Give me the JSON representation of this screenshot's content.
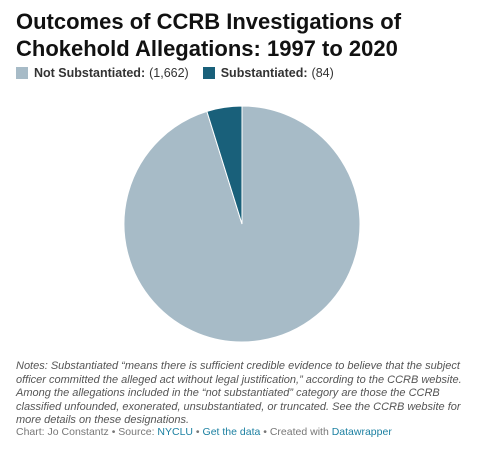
{
  "title": "Outcomes of CCRB Investigations of Chokehold Allegations: 1997 to 2020",
  "legend": [
    {
      "label": "Not Substantiated:",
      "value": "(1,662)",
      "color": "#a7bbc7"
    },
    {
      "label": "Substantiated:",
      "value": "(84)",
      "color": "#19607a"
    }
  ],
  "chart_data": {
    "type": "pie",
    "title": "Outcomes of CCRB Investigations of Chokehold Allegations: 1997 to 2020",
    "categories": [
      "Not Substantiated",
      "Substantiated"
    ],
    "values": [
      1662,
      84
    ],
    "colors": [
      "#a7bbc7",
      "#19607a"
    ],
    "start": "12 o'clock",
    "direction": "clockwise",
    "legend_position": "top-left"
  },
  "notes": "Notes: Substantiated “means there is sufficient credible evidence to believe that the subject officer committed the alleged act without legal justification,” according to the CCRB website. Among the allegations included in the “not substantiated” category are those the CCRB classified unfounded, exonerated, unsubstantiated, or truncated. See the CCRB website for more details on these designations.",
  "footer": {
    "credit": "Chart: Jo Constantz • Source: ",
    "source_link": "NYCLU",
    "sep1": " • ",
    "data_link": "Get the data",
    "sep2": " • Created with ",
    "tool_link": "Datawrapper"
  }
}
